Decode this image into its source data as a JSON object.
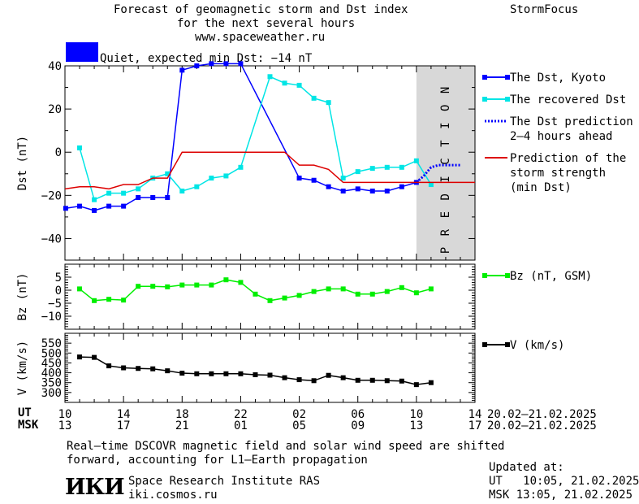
{
  "header": {
    "title_lines": [
      "Forecast of geomagnetic storm and Dst index",
      "for the next several hours",
      "www.spaceweather.ru"
    ],
    "brand": "StormFocus",
    "status_text": "Quiet, expected min Dst: −14 nT",
    "status_color": "#0000ff"
  },
  "colors": {
    "dst_kyoto": "#0000ff",
    "dst_recovered": "#00e5e5",
    "dst_prediction": "#0000ff",
    "storm_strength": "#dd0000",
    "bz": "#00ee00",
    "v": "#000000",
    "prediction_band": "#d8d8d8"
  },
  "chart_data": [
    {
      "type": "line",
      "name": "dst-panel",
      "ylabel": "Dst (nT)",
      "ylim": [
        -50,
        40
      ],
      "yticks": [
        40,
        20,
        0,
        -20,
        -40
      ],
      "xlim": [
        0,
        28
      ],
      "prediction_band": [
        24,
        28
      ],
      "prediction_label": "PREDICTION",
      "series": [
        {
          "name": "The Dst, Kyoto",
          "x": [
            0.05,
            1,
            2,
            3,
            4,
            5,
            6,
            7,
            8,
            9,
            10,
            11,
            12,
            16,
            17,
            18,
            19,
            20,
            21,
            22,
            23,
            24
          ],
          "y": [
            -26,
            -25,
            -27,
            -25,
            -25,
            -21,
            -21,
            -21,
            38,
            40,
            41,
            41,
            41,
            -12,
            -13,
            -16,
            -18,
            -17,
            -18,
            -18,
            -16,
            -14
          ]
        },
        {
          "name": "The recovered Dst",
          "x": [
            1,
            2,
            3,
            4,
            5,
            6,
            7,
            8,
            9,
            10,
            11,
            12,
            14,
            15,
            16,
            17,
            18,
            19,
            20,
            21,
            22,
            23,
            24,
            25
          ],
          "y": [
            2,
            -22,
            -19,
            -19,
            -17,
            -12,
            -10,
            -18,
            -16,
            -12,
            -11,
            -7,
            35,
            32,
            31,
            25,
            23,
            -12,
            -9,
            -7.5,
            -7,
            -7,
            -4,
            -15
          ]
        },
        {
          "name": "The Dst prediction 2-4 hours ahead",
          "x": [
            24,
            24.5,
            25,
            25.5,
            26,
            27
          ],
          "y": [
            -14,
            -11,
            -7,
            -6,
            -6,
            -6
          ]
        },
        {
          "name": "Prediction of the storm strength (min Dst)",
          "x": [
            0,
            1,
            2,
            3,
            4,
            5,
            6,
            7,
            8,
            9,
            10,
            11,
            12,
            13,
            14,
            15,
            16,
            17,
            18,
            19,
            20,
            21,
            22,
            23,
            24,
            28
          ],
          "y": [
            -17,
            -16,
            -16,
            -17,
            -15,
            -15,
            -12,
            -12,
            0,
            0,
            0,
            0,
            0,
            0,
            0,
            0,
            -6,
            -6,
            -8,
            -14,
            -14,
            -14,
            -14,
            -14,
            -14,
            -14
          ]
        }
      ],
      "legend": [
        {
          "text": "The Dst, Kyoto",
          "style": "square-line",
          "color": "#0000ff"
        },
        {
          "text": "The recovered Dst",
          "style": "square-line",
          "color": "#00e5e5"
        },
        {
          "text": "The Dst prediction\n2–4 hours ahead",
          "style": "dotted",
          "color": "#0000ff"
        },
        {
          "text": "Prediction of the\nstorm strength\n(min Dst)",
          "style": "line",
          "color": "#dd0000"
        }
      ]
    },
    {
      "type": "line",
      "name": "bz-panel",
      "ylabel": "Bz (nT)",
      "ylim": [
        -15,
        10
      ],
      "yticks": [
        5,
        0,
        -5,
        -10
      ],
      "xlim": [
        0,
        28
      ],
      "series": [
        {
          "name": "Bz (nT, GSM)",
          "x": [
            1,
            2,
            3,
            4,
            5,
            6,
            7,
            8,
            9,
            10,
            11,
            12,
            13,
            14,
            15,
            16,
            17,
            18,
            19,
            20,
            21,
            22,
            23,
            24,
            25
          ],
          "y": [
            0.5,
            -4,
            -3.5,
            -3.8,
            1.5,
            1.5,
            1.3,
            2,
            2,
            2,
            4,
            3,
            -1.5,
            -4,
            -3,
            -2,
            -0.5,
            0.5,
            0.5,
            -1.5,
            -1.5,
            -0.5,
            1,
            -1,
            0.5
          ]
        }
      ],
      "legend": [
        {
          "text": "Bz (nT, GSM)",
          "style": "square-line",
          "color": "#00ee00"
        }
      ]
    },
    {
      "type": "line",
      "name": "v-panel",
      "ylabel": "V (km/s)",
      "ylim": [
        250,
        600
      ],
      "yticks": [
        550,
        500,
        450,
        400,
        350,
        300
      ],
      "xlim": [
        0,
        28
      ],
      "series": [
        {
          "name": "V (km/s)",
          "x": [
            1,
            2,
            3,
            4,
            5,
            6,
            7,
            8,
            9,
            10,
            11,
            12,
            13,
            14,
            15,
            16,
            17,
            18,
            19,
            20,
            21,
            22,
            23,
            24,
            25
          ],
          "y": [
            480,
            478,
            435,
            425,
            422,
            420,
            410,
            398,
            395,
            395,
            395,
            395,
            390,
            388,
            375,
            365,
            360,
            387,
            375,
            362,
            362,
            360,
            358,
            340,
            350
          ]
        }
      ],
      "legend": [
        {
          "text": "V (km/s)",
          "style": "square-line",
          "color": "#000000"
        }
      ]
    }
  ],
  "x_axis": {
    "ticks": [
      0,
      4,
      8,
      12,
      16,
      20,
      24,
      28
    ],
    "ut_label": "UT",
    "msk_label": "MSK",
    "ut_ticks": [
      "10",
      "14",
      "18",
      "22",
      "02",
      "06",
      "10",
      "14"
    ],
    "msk_ticks": [
      "13",
      "17",
      "21",
      "01",
      "05",
      "09",
      "13",
      "17"
    ],
    "ut_date_range": "20.02–21.02.2025",
    "msk_date_range": "20.02–21.02.2025"
  },
  "footer": {
    "note_lines": [
      "Real–time DSCOVR magnetic field and solar wind speed are shifted",
      "forward, accounting for L1–Earth propagation"
    ],
    "logo_text": "ИКИ",
    "institute": "Space Research Institute RAS",
    "site": "iki.cosmos.ru",
    "updated_label": "Updated at:",
    "updated_ut": "UT   10:05, 21.02.2025",
    "updated_msk": "MSK 13:05, 21.02.2025"
  }
}
